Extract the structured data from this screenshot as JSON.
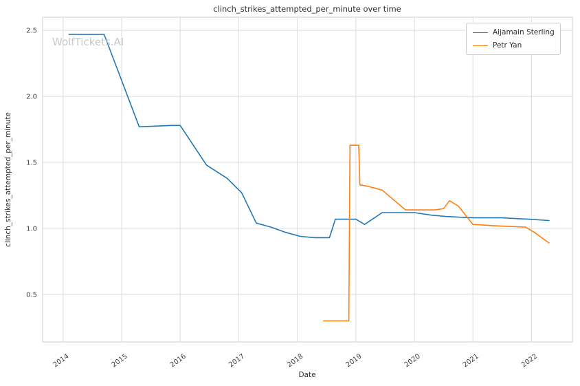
{
  "watermark": {
    "text": "WolfTickets.AI"
  },
  "colors": {
    "grid": "#dcdcdc",
    "frame": "#cccccc",
    "background": "#ffffff",
    "text": "#2e2e2e",
    "tick_text": "#3d3d3d",
    "watermark": "#c9c9c9"
  },
  "chart_data": {
    "type": "line",
    "title": "clinch_strikes_attempted_per_minute over time",
    "xlabel": "Date",
    "ylabel": "clinch_strikes_attempted_per_minute",
    "xlim": [
      2013.65,
      2022.7
    ],
    "ylim": [
      0.14,
      2.6
    ],
    "xticks": [
      2014,
      2015,
      2016,
      2017,
      2018,
      2019,
      2020,
      2021,
      2022
    ],
    "yticks": [
      0.5,
      1.0,
      1.5,
      2.0,
      2.5
    ],
    "ytick_labels": [
      "0.5",
      "1.0",
      "1.5",
      "2.0",
      "2.5"
    ],
    "grid": true,
    "legend_position": "upper right",
    "series": [
      {
        "name": "Aljamain Sterling",
        "color": "#1f77b4",
        "x": [
          2014.1,
          2014.7,
          2015.3,
          2015.85,
          2016.0,
          2016.45,
          2016.8,
          2017.05,
          2017.3,
          2017.55,
          2017.8,
          2018.05,
          2018.3,
          2018.55,
          2018.65,
          2019.0,
          2019.15,
          2019.45,
          2020.0,
          2020.3,
          2020.55,
          2021.0,
          2021.5,
          2021.95,
          2022.3
        ],
        "y": [
          2.47,
          2.47,
          1.77,
          1.78,
          1.78,
          1.48,
          1.38,
          1.27,
          1.04,
          1.01,
          0.97,
          0.94,
          0.93,
          0.93,
          1.07,
          1.07,
          1.03,
          1.12,
          1.12,
          1.1,
          1.09,
          1.08,
          1.08,
          1.07,
          1.06
        ]
      },
      {
        "name": "Petr Yan",
        "color": "#ff7f0e",
        "x": [
          2018.45,
          2018.88,
          2018.9,
          2019.05,
          2019.07,
          2019.2,
          2019.45,
          2019.85,
          2020.35,
          2020.5,
          2020.6,
          2020.75,
          2021.0,
          2021.4,
          2021.9,
          2022.05,
          2022.3
        ],
        "y": [
          0.3,
          0.3,
          1.63,
          1.63,
          1.33,
          1.32,
          1.29,
          1.14,
          1.14,
          1.15,
          1.21,
          1.17,
          1.03,
          1.02,
          1.01,
          0.97,
          0.89
        ]
      }
    ]
  }
}
